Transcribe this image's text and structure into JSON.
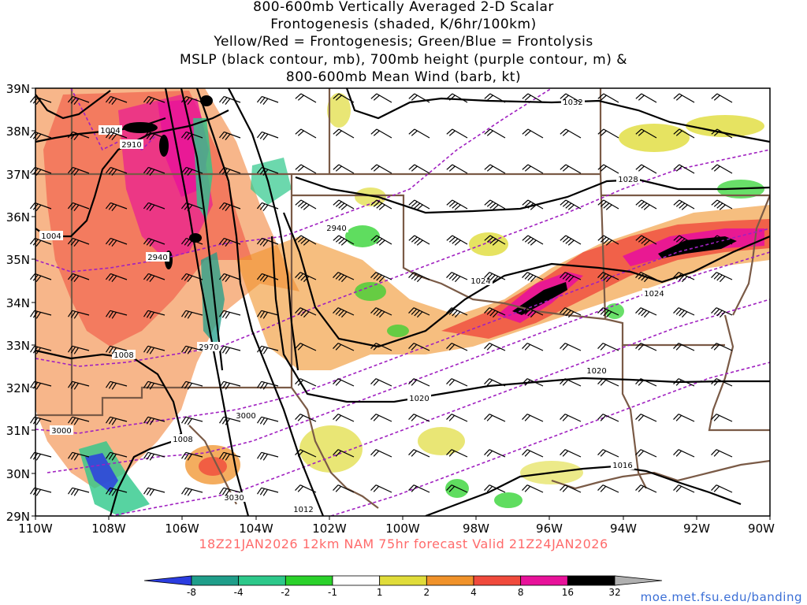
{
  "title": {
    "line1": "800-600mb Vertically Averaged 2-D Scalar",
    "line2": "Frontogenesis (shaded, K/6hr/100km)",
    "line3": "Yellow/Red = Frontogenesis;  Green/Blue = Frontolysis",
    "line4": "MSLP (black contour, mb), 700mb height (purple contour, m) &",
    "line5": "800-600mb Mean Wind (barb, kt)"
  },
  "valid_text": "18Z21JAN2026 12km NAM 75hr forecast Valid 21Z24JAN2026",
  "credit": "moe.met.fsu.edu/banding",
  "axes": {
    "lat_labels": [
      "39N",
      "38N",
      "37N",
      "36N",
      "35N",
      "34N",
      "33N",
      "32N",
      "31N",
      "30N",
      "29N"
    ],
    "lon_labels": [
      "110W",
      "108W",
      "106W",
      "104W",
      "102W",
      "100W",
      "98W",
      "96W",
      "94W",
      "92W",
      "90W"
    ]
  },
  "colorbar": {
    "labels": [
      "-8",
      "-4",
      "-2",
      "-1",
      "1",
      "2",
      "4",
      "8",
      "16",
      "32"
    ],
    "colors": [
      "#2b3de0",
      "#1f9e8a",
      "#2dc88a",
      "#2ad12a",
      "#ffffff",
      "#e0dc3a",
      "#f0922a",
      "#f04a3c",
      "#e8129a",
      "#000000",
      "#b0b0b0"
    ]
  },
  "mslp_labels": [
    "1032",
    "1028",
    "1024",
    "1024",
    "1020",
    "1020",
    "1016",
    "1012",
    "1008",
    "1008",
    "1004",
    "1004"
  ],
  "height_labels": [
    "2910",
    "2940",
    "2940",
    "2970",
    "3000",
    "3000",
    "3030"
  ],
  "colors": {
    "mslp": "#000000",
    "height": "#a020c0",
    "border": "#7a5a46",
    "barb": "#000000"
  }
}
